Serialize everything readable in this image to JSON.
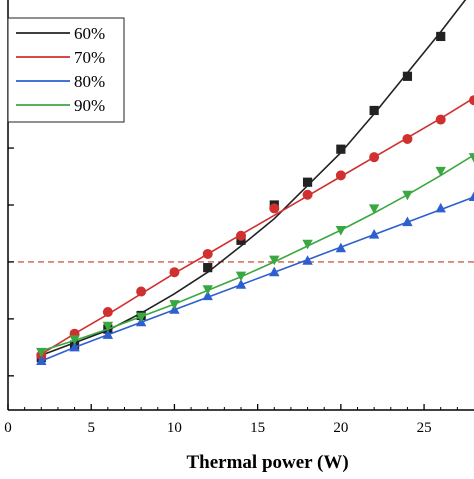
{
  "chart_data": {
    "type": "line",
    "title": "",
    "xlabel": "Thermal power (W)",
    "ylabel": "",
    "xlim": [
      0,
      28
    ],
    "ylim": [
      0,
      3.6
    ],
    "x_ticks": [
      0,
      5,
      10,
      15,
      20,
      25
    ],
    "x_tick_labels": [
      "0",
      "5",
      "10",
      "15",
      "20",
      "25"
    ],
    "y_ticks": [
      0.3,
      0.8,
      1.3,
      1.8,
      2.3,
      2.8,
      3.3
    ],
    "grid": false,
    "legend_position": "top-left",
    "reference_line": {
      "y": 1.3,
      "style": "dashed",
      "color": "#c0392b"
    },
    "series": [
      {
        "name": "60%",
        "color": "#222222",
        "marker": "square",
        "points": [
          [
            2,
            0.48
          ],
          [
            4,
            0.59
          ],
          [
            6,
            0.7
          ],
          [
            8,
            0.85
          ],
          [
            10,
            1.02
          ],
          [
            12,
            1.21
          ],
          [
            14,
            1.44
          ],
          [
            16,
            1.68
          ],
          [
            18,
            1.97
          ],
          [
            20,
            2.26
          ],
          [
            22,
            2.6
          ],
          [
            24,
            2.96
          ],
          [
            26,
            3.32
          ],
          [
            28,
            3.7
          ]
        ],
        "markers": [
          [
            2,
            0.46
          ],
          [
            4,
            0.57
          ],
          [
            6,
            0.71
          ],
          [
            8,
            0.83
          ],
          [
            12,
            1.25
          ],
          [
            14,
            1.49
          ],
          [
            16,
            1.8
          ],
          [
            18,
            2.0
          ],
          [
            20,
            2.29
          ],
          [
            22,
            2.63
          ],
          [
            24,
            2.93
          ],
          [
            26,
            3.28
          ],
          [
            28,
            3.67
          ]
        ]
      },
      {
        "name": "70%",
        "color": "#d03030",
        "marker": "circle",
        "points": [
          [
            2,
            0.49
          ],
          [
            4,
            0.67
          ],
          [
            6,
            0.84
          ],
          [
            8,
            1.02
          ],
          [
            10,
            1.2
          ],
          [
            12,
            1.37
          ],
          [
            14,
            1.54
          ],
          [
            16,
            1.71
          ],
          [
            18,
            1.88
          ],
          [
            20,
            2.05
          ],
          [
            22,
            2.22
          ],
          [
            24,
            2.39
          ],
          [
            26,
            2.56
          ],
          [
            28,
            2.74
          ]
        ],
        "markers": [
          [
            2,
            0.48
          ],
          [
            4,
            0.67
          ],
          [
            6,
            0.86
          ],
          [
            8,
            1.04
          ],
          [
            10,
            1.21
          ],
          [
            12,
            1.37
          ],
          [
            14,
            1.53
          ],
          [
            16,
            1.77
          ],
          [
            18,
            1.89
          ],
          [
            20,
            2.06
          ],
          [
            22,
            2.22
          ],
          [
            24,
            2.38
          ],
          [
            26,
            2.55
          ],
          [
            28,
            2.72
          ]
        ]
      },
      {
        "name": "80%",
        "color": "#2e5fd0",
        "marker": "triangle-up",
        "points": [
          [
            2,
            0.43
          ],
          [
            4,
            0.55
          ],
          [
            6,
            0.66
          ],
          [
            8,
            0.77
          ],
          [
            10,
            0.88
          ],
          [
            12,
            0.99
          ],
          [
            14,
            1.1
          ],
          [
            16,
            1.21
          ],
          [
            18,
            1.32
          ],
          [
            20,
            1.43
          ],
          [
            22,
            1.54
          ],
          [
            24,
            1.65
          ],
          [
            26,
            1.76
          ],
          [
            28,
            1.87
          ]
        ],
        "markers": [
          [
            2,
            0.43
          ],
          [
            4,
            0.55
          ],
          [
            6,
            0.66
          ],
          [
            8,
            0.77
          ],
          [
            10,
            0.88
          ],
          [
            12,
            1.0
          ],
          [
            14,
            1.1
          ],
          [
            16,
            1.21
          ],
          [
            18,
            1.31
          ],
          [
            20,
            1.42
          ],
          [
            22,
            1.54
          ],
          [
            24,
            1.65
          ],
          [
            26,
            1.77
          ],
          [
            28,
            1.87
          ]
        ]
      },
      {
        "name": "90%",
        "color": "#3aa840",
        "marker": "triangle-down",
        "points": [
          [
            2,
            0.52
          ],
          [
            4,
            0.61
          ],
          [
            6,
            0.71
          ],
          [
            8,
            0.82
          ],
          [
            10,
            0.93
          ],
          [
            12,
            1.05
          ],
          [
            14,
            1.17
          ],
          [
            16,
            1.3
          ],
          [
            18,
            1.44
          ],
          [
            20,
            1.58
          ],
          [
            22,
            1.73
          ],
          [
            24,
            1.89
          ],
          [
            26,
            2.06
          ],
          [
            28,
            2.24
          ]
        ],
        "markers": [
          [
            2,
            0.51
          ],
          [
            4,
            0.62
          ],
          [
            6,
            0.74
          ],
          [
            8,
            0.82
          ],
          [
            10,
            0.93
          ],
          [
            12,
            1.06
          ],
          [
            14,
            1.18
          ],
          [
            16,
            1.32
          ],
          [
            18,
            1.46
          ],
          [
            20,
            1.58
          ],
          [
            22,
            1.77
          ],
          [
            24,
            1.89
          ],
          [
            26,
            2.1
          ],
          [
            28,
            2.22
          ]
        ]
      }
    ]
  }
}
